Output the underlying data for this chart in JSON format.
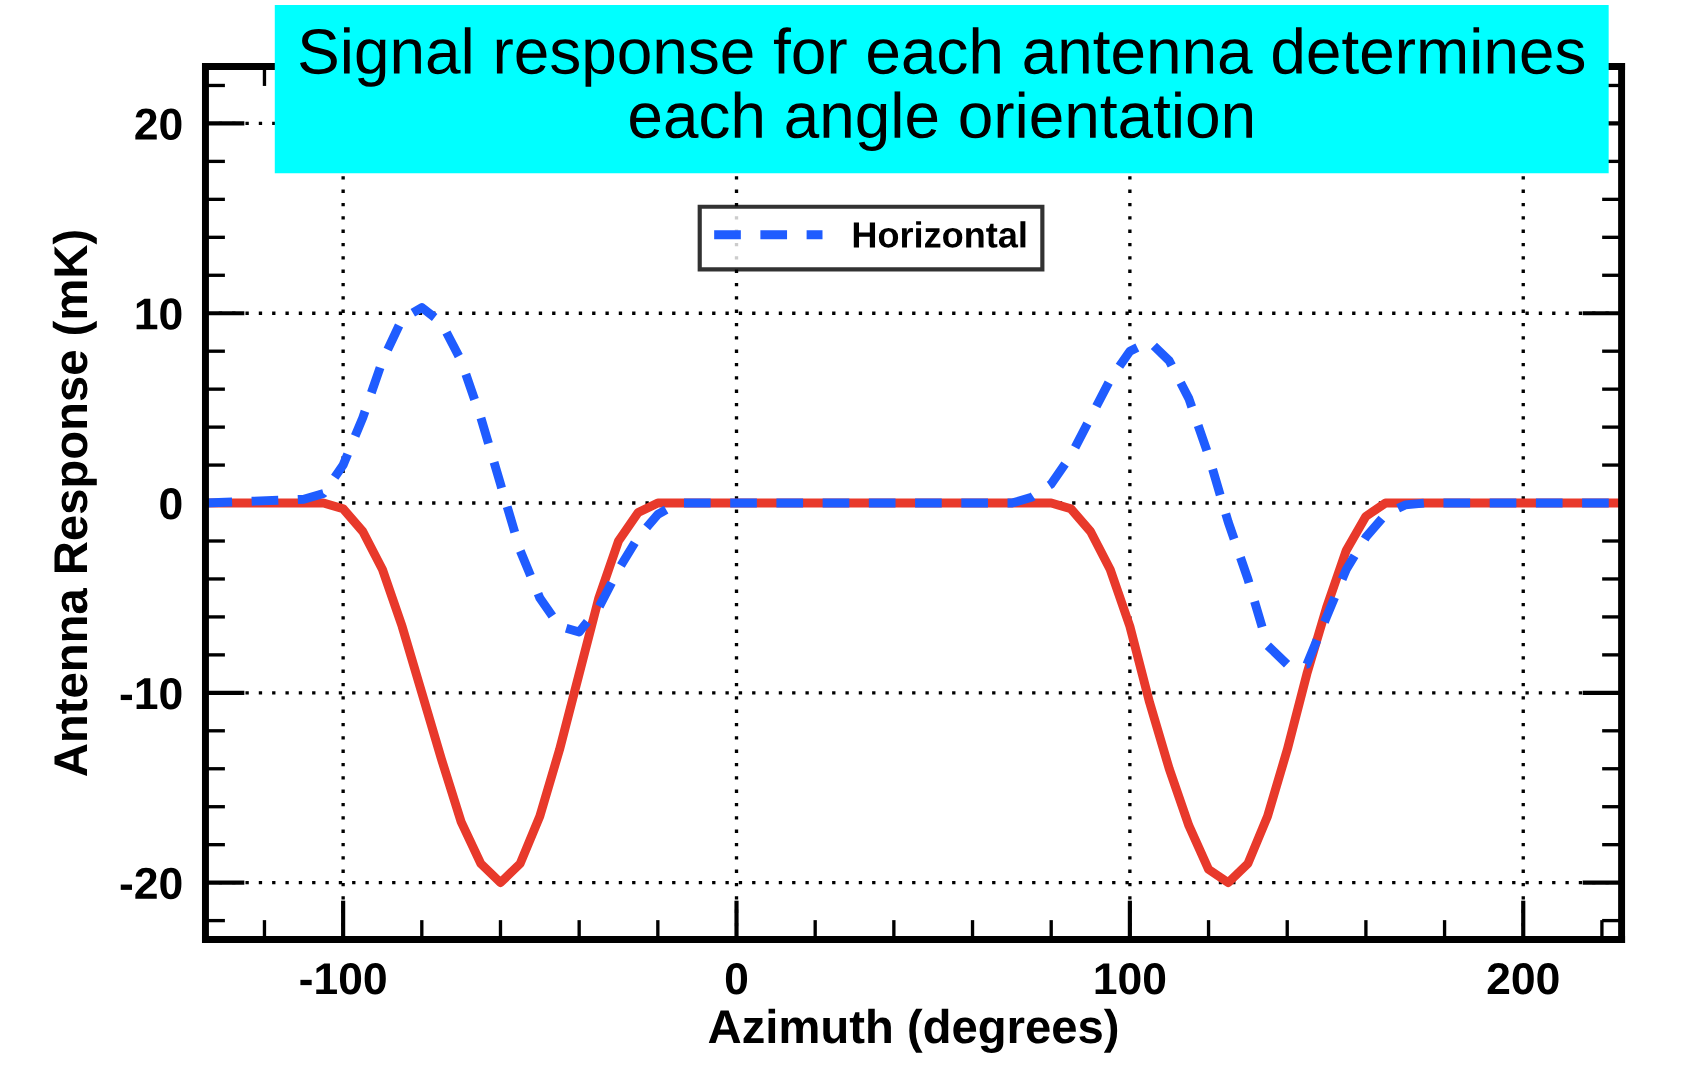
{
  "chart_data": {
    "type": "line",
    "xlabel": "Azimuth (degrees)",
    "ylabel": "Antenna Response (mK)",
    "annotations": [
      "Signal response for each antenna determines each angle orientation"
    ],
    "xlim": [
      -135,
      225
    ],
    "xticks": [
      -100,
      0,
      100,
      200
    ],
    "ylim": [
      -23,
      23
    ],
    "yticks": [
      -20,
      -10,
      0,
      10,
      20
    ],
    "grid": true,
    "legend": "top",
    "marker": "none",
    "series": [
      {
        "color": "#e8392b",
        "line_style": "solid",
        "x": [
          -135,
          -105,
          -100,
          -95,
          -90,
          -85,
          -80,
          -75,
          -70,
          -65,
          -60,
          -55,
          -50,
          -45,
          -40,
          -35,
          -30,
          -25,
          -20,
          80,
          85,
          90,
          95,
          100,
          105,
          110,
          115,
          120,
          125,
          130,
          135,
          140,
          145,
          150,
          155,
          160,
          165,
          225
        ],
        "values": [
          0,
          0,
          -0.3,
          -1.5,
          -3.5,
          -6.5,
          -10,
          -13.5,
          -16.8,
          -19,
          -20,
          -19,
          -16.5,
          -13,
          -9,
          -5,
          -2,
          -0.5,
          0,
          0,
          -0.3,
          -1.5,
          -3.5,
          -6.5,
          -10.5,
          -14,
          -17,
          -19.3,
          -20,
          -19,
          -16.5,
          -13,
          -9,
          -5.5,
          -2.5,
          -0.7,
          0,
          0
        ]
      },
      {
        "name": "Horizontal",
        "color": "#1f5cff",
        "line_style": "dashed",
        "x": [
          -135,
          -110,
          -105,
          -100,
          -95,
          -90,
          -85,
          -80,
          -75,
          -70,
          -65,
          -60,
          -55,
          -50,
          -45,
          -40,
          -35,
          -30,
          -25,
          -20,
          -15,
          70,
          75,
          80,
          85,
          90,
          95,
          100,
          105,
          110,
          115,
          120,
          125,
          130,
          135,
          140,
          145,
          150,
          155,
          160,
          165,
          170,
          175,
          225
        ],
        "values": [
          0,
          0.2,
          0.5,
          2,
          4.5,
          7.5,
          9.7,
          10.3,
          9.5,
          7.5,
          4.5,
          1,
          -2.5,
          -5,
          -6.5,
          -6.8,
          -5.5,
          -3.5,
          -1.8,
          -0.6,
          0,
          0,
          0.3,
          1,
          2.5,
          4.5,
          6.5,
          8,
          8.5,
          7.5,
          5.5,
          2.5,
          -1,
          -4,
          -7.5,
          -8.5,
          -8.5,
          -6,
          -3.5,
          -1.8,
          -0.6,
          -0.1,
          0,
          0
        ]
      }
    ]
  }
}
